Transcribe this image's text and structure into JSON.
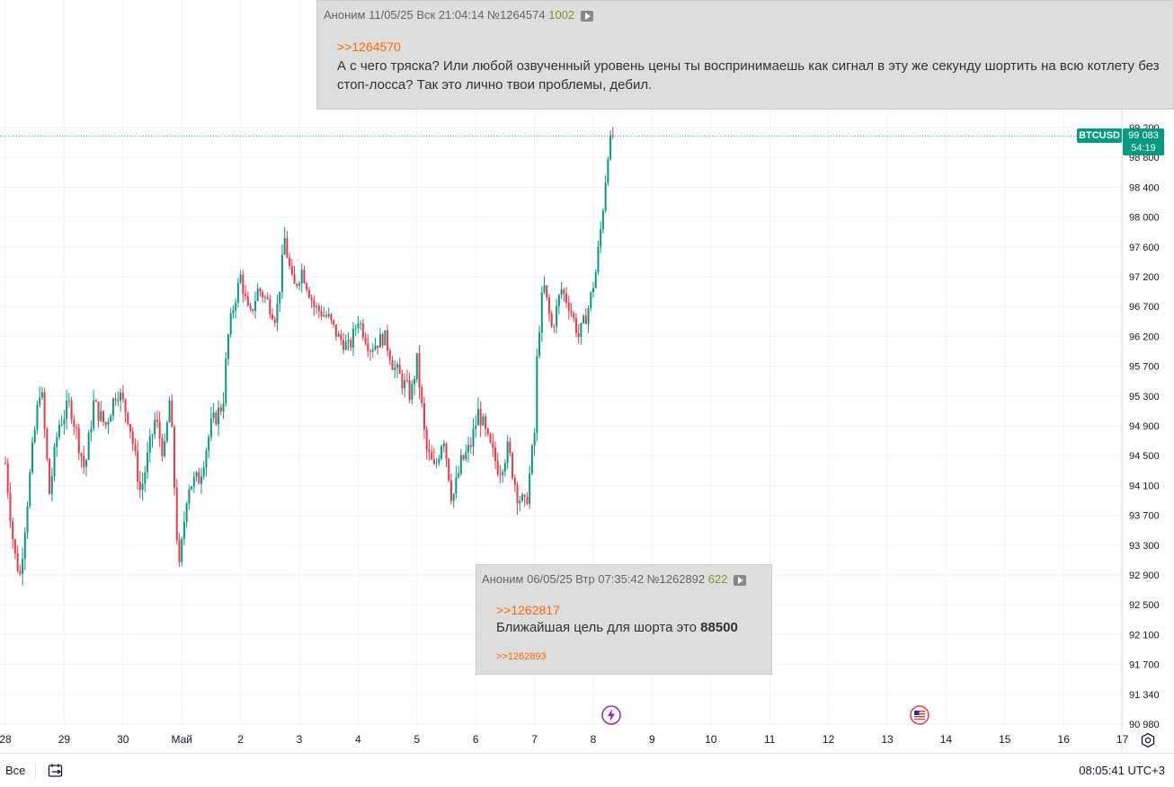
{
  "symbol_badge": "BTCUSD",
  "price_badge": {
    "price": "99 083",
    "countdown": "54:19"
  },
  "colors": {
    "up": "#089981",
    "down": "#f23645",
    "accent": "#089981"
  },
  "chart_data": {
    "type": "candlestick",
    "x_ticks": [
      "28",
      "29",
      "30",
      "Май",
      "2",
      "3",
      "4",
      "5",
      "6",
      "7",
      "8",
      "9",
      "10",
      "11",
      "12",
      "13",
      "14",
      "15",
      "16",
      "17"
    ],
    "y_ticks": [
      "99 200",
      "98 800",
      "98 400",
      "98 000",
      "97 600",
      "97 200",
      "96 700",
      "96 200",
      "95 700",
      "95 300",
      "94 900",
      "94 500",
      "94 100",
      "93 700",
      "93 300",
      "92 900",
      "92 500",
      "92 100",
      "91 700",
      "91 340",
      "90 980"
    ],
    "ylim": [
      90980,
      99400
    ],
    "last_price": 99083,
    "path": [
      [
        28.0,
        94400
      ],
      [
        28.15,
        93200
      ],
      [
        28.25,
        92900
      ],
      [
        28.45,
        94500
      ],
      [
        28.6,
        95500
      ],
      [
        28.75,
        94000
      ],
      [
        28.9,
        94900
      ],
      [
        29.1,
        95200
      ],
      [
        29.35,
        94300
      ],
      [
        29.5,
        95200
      ],
      [
        29.7,
        94900
      ],
      [
        29.9,
        95400
      ],
      [
        30.1,
        95000
      ],
      [
        30.3,
        94000
      ],
      [
        30.55,
        95000
      ],
      [
        30.7,
        94500
      ],
      [
        30.8,
        95300
      ],
      [
        30.95,
        92900
      ],
      [
        31.1,
        94100
      ],
      [
        31.3,
        94200
      ],
      [
        31.5,
        94900
      ],
      [
        31.7,
        95200
      ],
      [
        31.8,
        96300
      ],
      [
        31.9,
        96800
      ],
      [
        32.0,
        97200
      ],
      [
        32.15,
        96500
      ],
      [
        32.3,
        97000
      ],
      [
        32.45,
        96800
      ],
      [
        32.6,
        96500
      ],
      [
        32.75,
        97700
      ],
      [
        32.9,
        97000
      ],
      [
        33.05,
        97300
      ],
      [
        33.25,
        96700
      ],
      [
        33.5,
        96500
      ],
      [
        33.65,
        96200
      ],
      [
        33.85,
        96000
      ],
      [
        34.0,
        96500
      ],
      [
        34.2,
        96000
      ],
      [
        34.45,
        96200
      ],
      [
        34.6,
        95700
      ],
      [
        34.75,
        95500
      ],
      [
        34.9,
        95300
      ],
      [
        35.0,
        95800
      ],
      [
        35.15,
        94600
      ],
      [
        35.3,
        94300
      ],
      [
        35.45,
        94800
      ],
      [
        35.6,
        93900
      ],
      [
        35.75,
        94400
      ],
      [
        35.9,
        94600
      ],
      [
        36.05,
        95100
      ],
      [
        36.2,
        94700
      ],
      [
        36.4,
        94300
      ],
      [
        36.55,
        94600
      ],
      [
        36.7,
        94000
      ],
      [
        36.85,
        93800
      ],
      [
        37.0,
        94800
      ],
      [
        37.05,
        96000
      ],
      [
        37.15,
        97100
      ],
      [
        37.3,
        96300
      ],
      [
        37.45,
        97000
      ],
      [
        37.6,
        96700
      ],
      [
        37.75,
        96200
      ],
      [
        37.9,
        96600
      ],
      [
        38.05,
        97300
      ],
      [
        38.15,
        98000
      ],
      [
        38.25,
        98900
      ],
      [
        38.35,
        99083
      ]
    ],
    "vertical_markers": [
      {
        "x": 8.3,
        "icon": "lightning-icon"
      },
      {
        "x": 13.6,
        "icon": "us-flag-icon"
      }
    ]
  },
  "post_top": {
    "author": "Аноним",
    "date": "11/05/25 Вск 21:04:14",
    "number": "№1264574",
    "count": "1002",
    "reply_to": ">>1264570",
    "text": "А с чего тряска? Или любой озвученный уровень цены ты воспринимаешь как сигнал в эту же секунду шортить на всю котлету без стоп-лосса? Так это лично твои проблемы, дебил."
  },
  "post_bottom": {
    "author": "Аноним",
    "date": "06/05/25 Втр 07:35:42",
    "number": "№1262892",
    "count": "622",
    "reply_to": ">>1262817",
    "text": "Ближайшая цель для шорта это",
    "text_bold": "88500",
    "reply_from": ">>1262893"
  },
  "bottom_bar": {
    "all_label": "Все",
    "time": "08:05:41 UTC+3"
  }
}
